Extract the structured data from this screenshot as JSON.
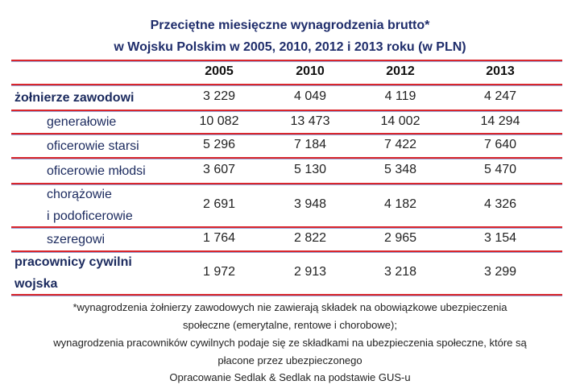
{
  "chart_data": {
    "type": "table",
    "title": [
      "Przeciętne miesięczne wynagrodzenia brutto*",
      "w Wojsku Polskim w 2005, 2010, 2012 i 2013 roku (w PLN)"
    ],
    "columns": [
      "2005",
      "2010",
      "2012",
      "2013"
    ],
    "rows": [
      {
        "label": [
          "żołnierze zawodowi"
        ],
        "level": "main",
        "values": [
          "3 229",
          "4 049",
          "4 119",
          "4 247"
        ]
      },
      {
        "label": [
          "generałowie"
        ],
        "level": "sub",
        "values": [
          "10 082",
          "13 473",
          "14 002",
          "14 294"
        ]
      },
      {
        "label": [
          "oficerowie starsi"
        ],
        "level": "sub",
        "values": [
          "5 296",
          "7 184",
          "7 422",
          "7 640"
        ]
      },
      {
        "label": [
          "oficerowie młodsi"
        ],
        "level": "sub",
        "values": [
          "3 607",
          "5 130",
          "5 348",
          "5 470"
        ]
      },
      {
        "label": [
          "chorążowie",
          "i podoficerowie"
        ],
        "level": "sub",
        "values": [
          "2 691",
          "3 948",
          "4 182",
          "4 326"
        ]
      },
      {
        "label": [
          "szeregowi"
        ],
        "level": "sub",
        "values": [
          "1 764",
          "2 822",
          "2 965",
          "3 154"
        ]
      },
      {
        "label": [
          "pracownicy cywilni",
          "wojska"
        ],
        "level": "main",
        "values": [
          "1 972",
          "2 913",
          "3 218",
          "3 299"
        ]
      }
    ],
    "footnotes": [
      "*wynagrodzenia żołnierzy zawodowych nie zawierają składek na obowiązkowe ubezpieczenia",
      "społeczne (emerytalne, rentowe i chorobowe);",
      "wynagrodzenia pracowników cywilnych podaje się ze składkami na ubezpieczenia społeczne, które są",
      "płacone przez ubezpieczonego",
      "Opracowanie Sedlak & Sedlak na podstawie GUS-u"
    ],
    "colors": {
      "title": "#1f2d6b",
      "rule": "#d9262c"
    }
  }
}
